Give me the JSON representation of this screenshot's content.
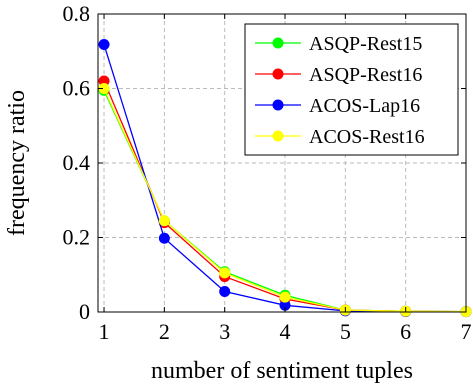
{
  "chart_data": {
    "type": "line",
    "title": "",
    "xlabel": "number of sentiment tuples",
    "ylabel": "frequency ratio",
    "x": [
      1,
      2,
      3,
      4,
      5,
      6,
      7
    ],
    "xlim": [
      0.9,
      7
    ],
    "ylim": [
      0,
      0.8
    ],
    "xticks": [
      "1",
      "2",
      "3",
      "4",
      "5",
      "6",
      "7"
    ],
    "yticks": [
      "0",
      "0.2",
      "0.4",
      "0.6",
      "0.8"
    ],
    "grid": true,
    "legend_position": "top-right",
    "series": [
      {
        "name": "ASQP-Rest15",
        "color": "#00ff00",
        "values": [
          0.595,
          0.245,
          0.108,
          0.045,
          0.005,
          0.002,
          0.001
        ]
      },
      {
        "name": "ASQP-Rest16",
        "color": "#ff0000",
        "values": [
          0.62,
          0.24,
          0.095,
          0.035,
          0.005,
          0.002,
          0.001
        ]
      },
      {
        "name": "ACOS-Lap16",
        "color": "#0000ff",
        "values": [
          0.718,
          0.198,
          0.055,
          0.018,
          0.003,
          0.001,
          0.001
        ]
      },
      {
        "name": "ACOS-Rest16",
        "color": "#ffff00",
        "values": [
          0.6,
          0.245,
          0.105,
          0.04,
          0.005,
          0.002,
          0.001
        ]
      }
    ]
  }
}
